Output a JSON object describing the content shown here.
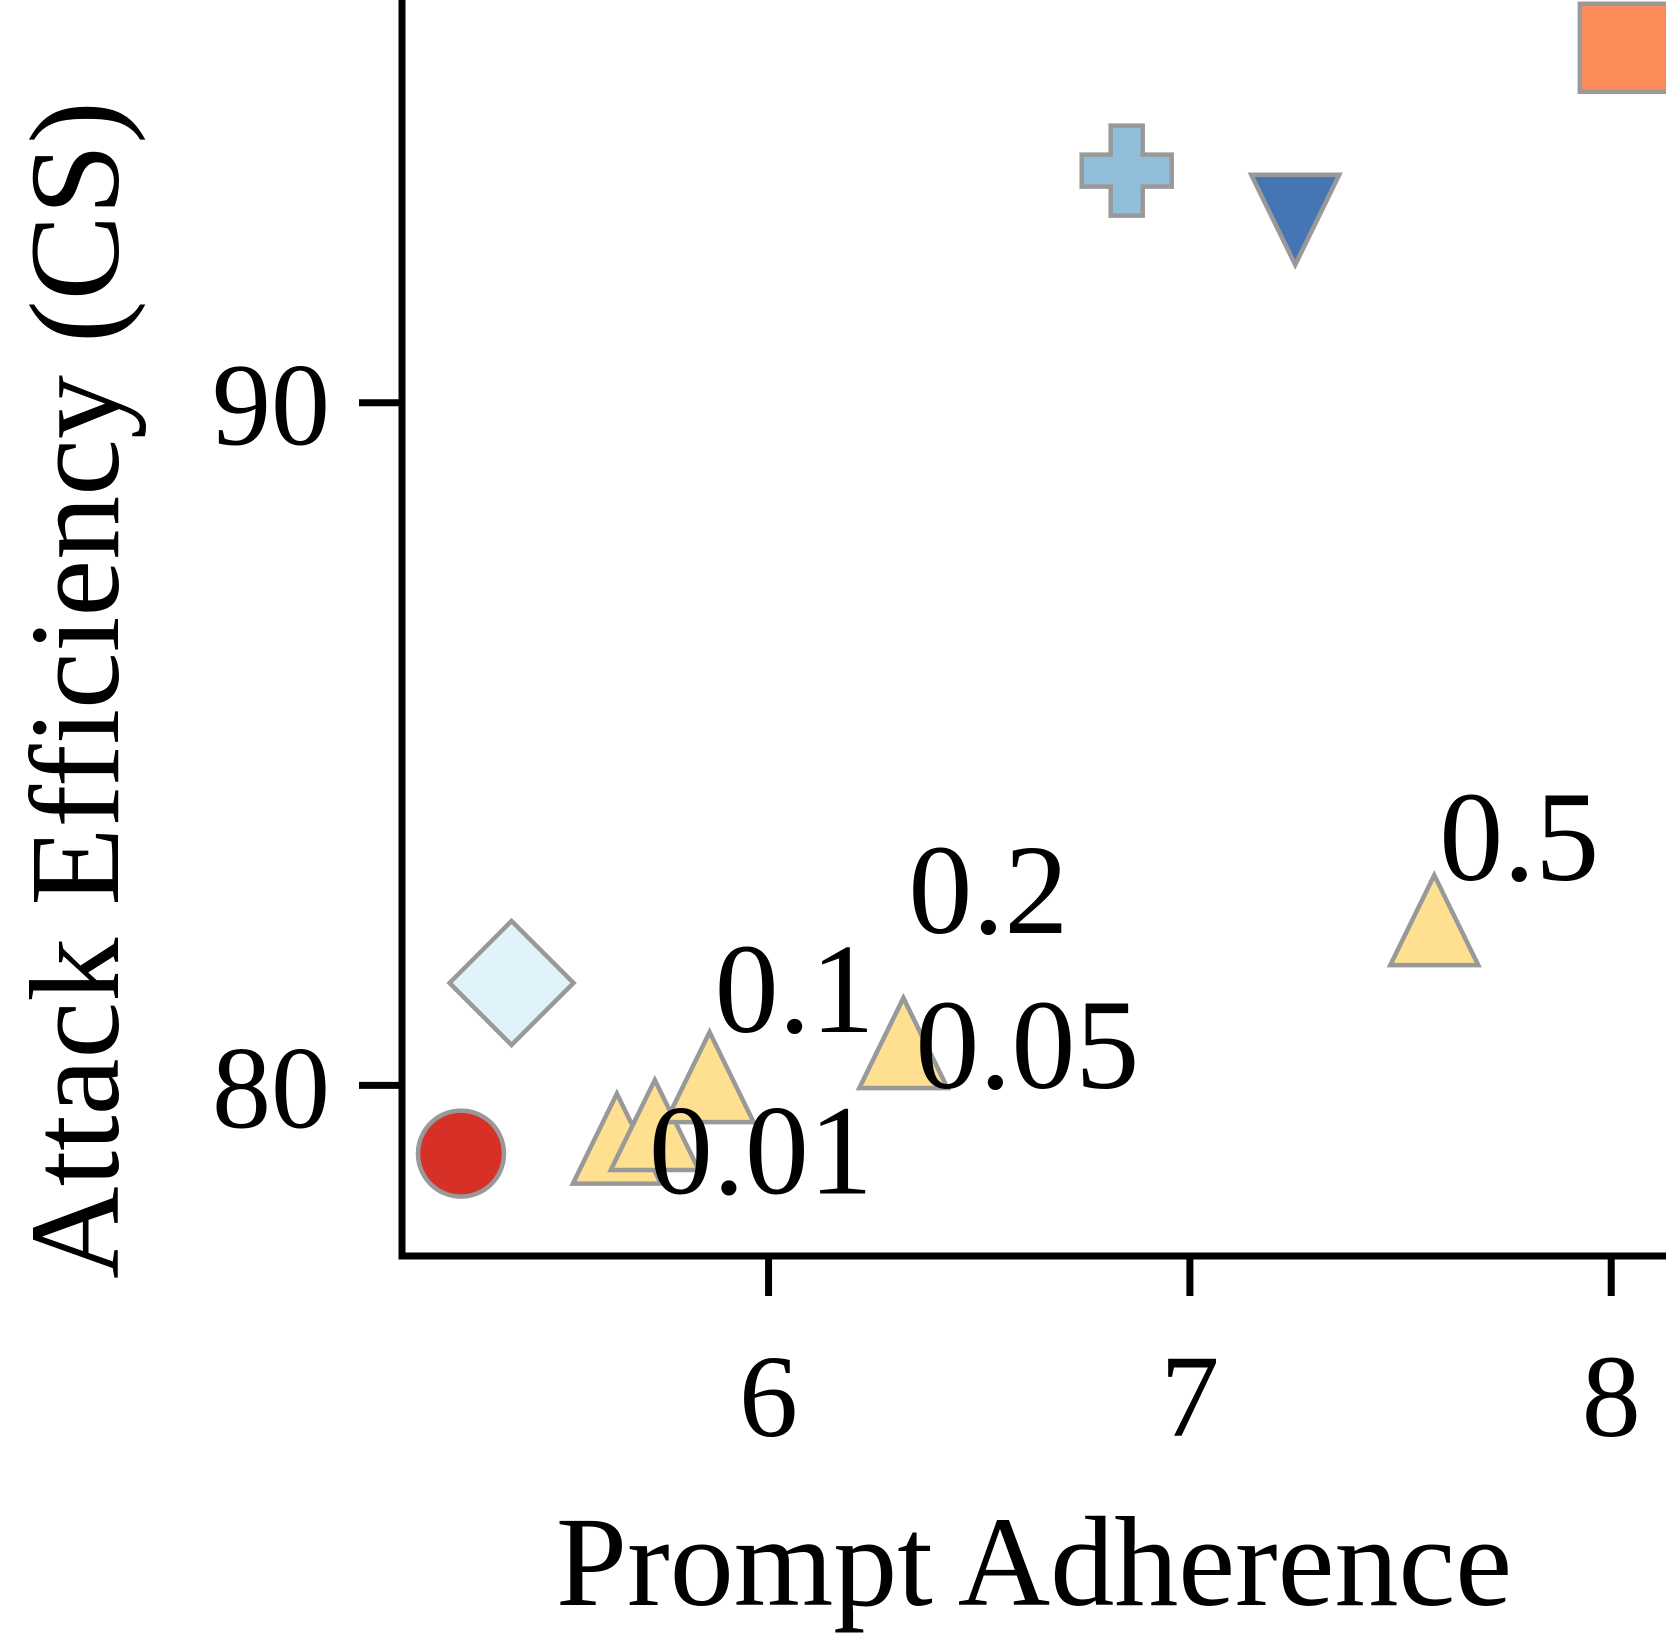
{
  "chart_data": {
    "type": "scatter",
    "title": "",
    "xlabel": "Prompt Adherence",
    "ylabel": "Attack Efficiency (CS)",
    "xlim": [
      5.13,
      8.13
    ],
    "ylim": [
      77.5,
      95.9
    ],
    "xticks": [
      6,
      7,
      8
    ],
    "xtick_labels": [
      "6",
      "7",
      "8"
    ],
    "yticks": [
      80,
      90
    ],
    "ytick_labels": [
      "80",
      "90"
    ],
    "grid": false,
    "legend": "none",
    "series": [
      {
        "marker": "circle",
        "color": "#d73027",
        "points": [
          {
            "x": 5.27,
            "y": 79.0
          }
        ]
      },
      {
        "marker": "diamond",
        "color": "#e0f3f8",
        "points": [
          {
            "x": 5.39,
            "y": 81.5
          }
        ]
      },
      {
        "marker": "plus",
        "color": "#91bfdb",
        "points": [
          {
            "x": 6.85,
            "y": 93.4
          }
        ]
      },
      {
        "marker": "triangle-down",
        "color": "#4575b4",
        "points": [
          {
            "x": 7.25,
            "y": 92.9
          }
        ]
      },
      {
        "marker": "square",
        "color": "#fc8d59",
        "points": [
          {
            "x": 8.03,
            "y": 95.2
          }
        ]
      },
      {
        "marker": "triangle-up",
        "color": "#fee090",
        "points": [
          {
            "x": 5.64,
            "y": 79.0,
            "label": "0.01"
          },
          {
            "x": 5.73,
            "y": 79.2,
            "label": ""
          },
          {
            "x": 5.86,
            "y": 79.9,
            "label": "0.1"
          },
          {
            "x": 6.32,
            "y": 80.4,
            "label": "0.05"
          },
          {
            "x": 6.32,
            "y": 80.4,
            "label": "0.2"
          },
          {
            "x": 7.58,
            "y": 82.2,
            "label": "0.5"
          }
        ]
      }
    ]
  }
}
